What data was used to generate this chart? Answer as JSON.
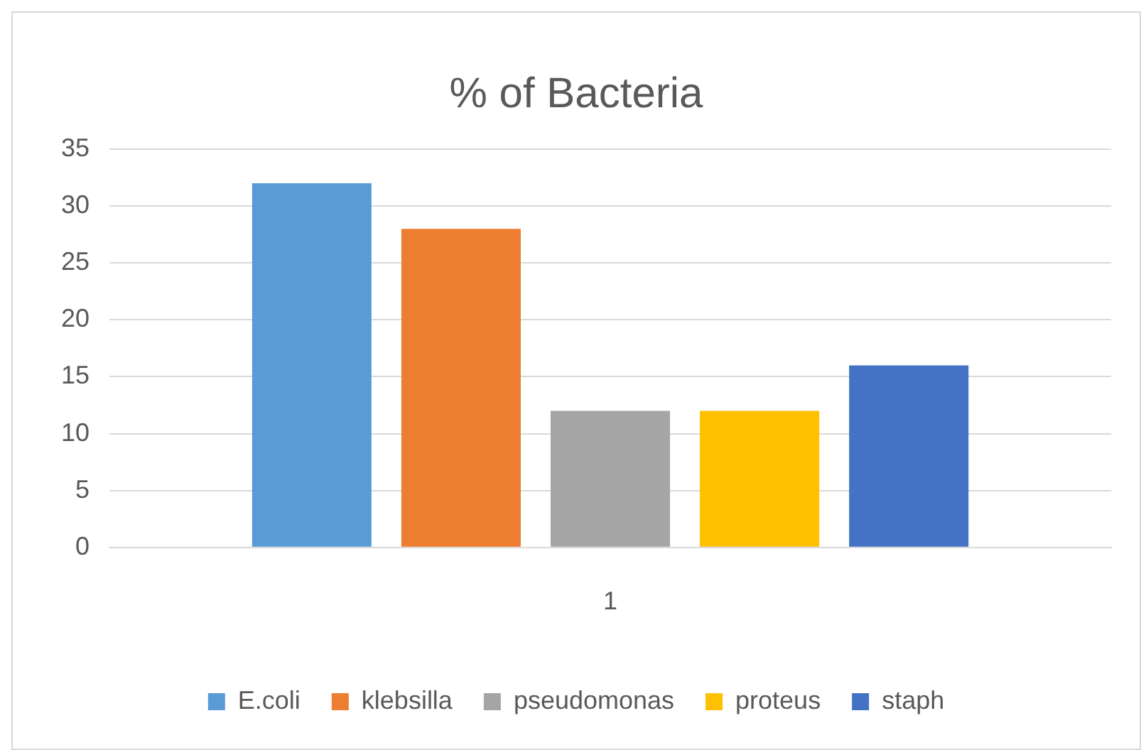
{
  "chart_data": {
    "type": "bar",
    "title": "% of Bacteria",
    "categories": [
      "1"
    ],
    "series": [
      {
        "name": "E.coli",
        "color": "#5b9bd5",
        "values": [
          32
        ]
      },
      {
        "name": "klebsilla",
        "color": "#ed7d31",
        "values": [
          28
        ]
      },
      {
        "name": "pseudomonas",
        "color": "#a5a5a5",
        "values": [
          12
        ]
      },
      {
        "name": "proteus",
        "color": "#ffc000",
        "values": [
          12
        ]
      },
      {
        "name": "staph",
        "color": "#4472c4",
        "values": [
          16
        ]
      }
    ],
    "ylim": [
      0,
      35
    ],
    "yticks": [
      0,
      5,
      10,
      15,
      20,
      25,
      30,
      35
    ],
    "grid": "y",
    "legend": "bottom"
  }
}
